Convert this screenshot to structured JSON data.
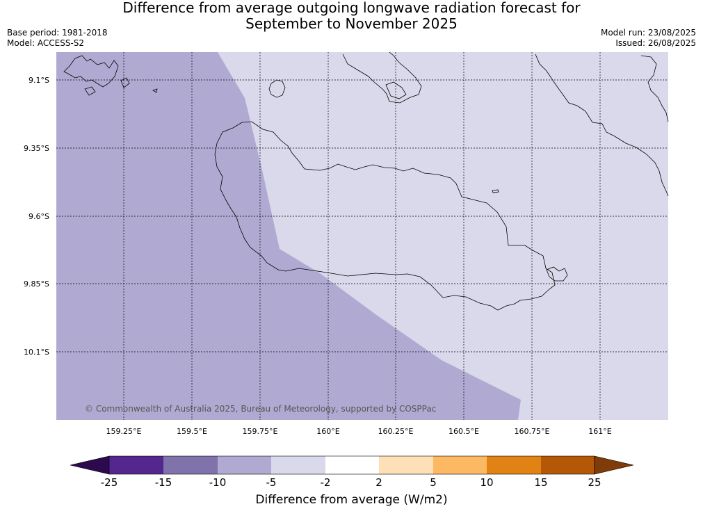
{
  "title": {
    "line1": "Difference from average outgoing longwave radiation forecast for",
    "line2": "September to November 2025"
  },
  "meta_left": {
    "base_period": "Base period: 1981-2018",
    "model": "Model: ACCESS-S2"
  },
  "meta_right": {
    "model_run": "Model run: 23/08/2025",
    "issued": "Issued: 26/08/2025"
  },
  "map": {
    "latitude_labels": [
      "9.1°S",
      "9.35°S",
      "9.6°S",
      "9.85°S",
      "10.1°S"
    ],
    "longitude_labels": [
      "159.25°E",
      "159.5°E",
      "159.75°E",
      "160°E",
      "160.25°E",
      "160.5°E",
      "160.75°E",
      "161°E"
    ],
    "lat_values": [
      -9.1,
      -9.35,
      -9.6,
      -9.85,
      -10.1
    ],
    "lon_values": [
      159.25,
      159.5,
      159.75,
      160.0,
      160.25,
      160.5,
      160.75,
      161.0
    ],
    "lon_range": [
      159.0,
      161.25
    ],
    "lat_range": [
      -9.0,
      -10.35
    ],
    "copyright": "© Commonwealth of Australia 2025, Bureau of Meteorology, supported by COSPPac",
    "region_colors": {
      "-10 to -5": "#b0aad2",
      "-5 to -2": "#d9d9eb"
    }
  },
  "colorbar": {
    "label": "Difference from average (W/m2)",
    "ticks": [
      "-25",
      "-15",
      "-10",
      "-5",
      "-2",
      "2",
      "5",
      "10",
      "15",
      "25"
    ],
    "colors": [
      "#2d0a4e",
      "#54278f",
      "#8073ac",
      "#b0aad2",
      "#d9d9eb",
      "#ffffff",
      "#fee0b6",
      "#fdb863",
      "#e08214",
      "#b35806",
      "#7f3b08"
    ]
  }
}
